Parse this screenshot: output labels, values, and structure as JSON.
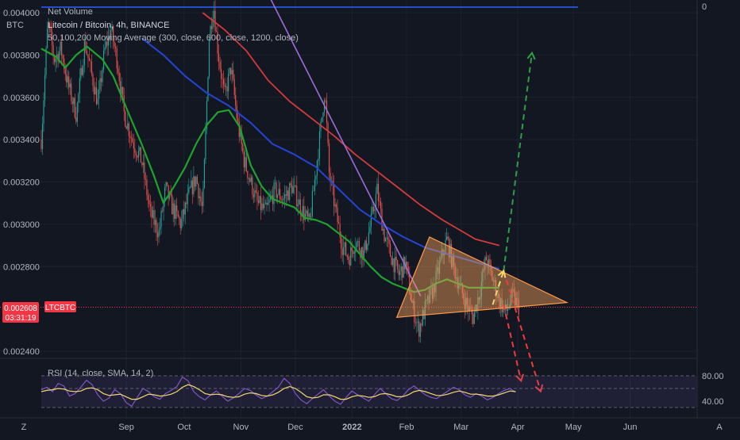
{
  "chart_data": {
    "type": "candlestick",
    "symbol": "LTCBTC",
    "title": "Litecoin / Bitcoin, 4h, BINANCE",
    "base_currency": "BTC",
    "indicator_top": "Net Volume",
    "indicator_top_value": "0",
    "ma_legend": "50,100,200 Moving Average (300, close, 600, close, 1200, close)",
    "rsi_legend": "RSI (14, close, SMA, 14, 2)",
    "current_price": "0.002608",
    "countdown": "03:31:19",
    "price_ticks": [
      "0.004000",
      "0.003800",
      "0.003600",
      "0.003400",
      "0.003200",
      "0.003000",
      "0.002800",
      "0.002400"
    ],
    "rsi_ticks": [
      "80.00",
      "40.00"
    ],
    "time_ticks": [
      "Sep",
      "Oct",
      "Nov",
      "Dec",
      "2022",
      "Feb",
      "Mar",
      "Apr",
      "May",
      "Jun"
    ],
    "scale_buttons": [
      "Z",
      "A"
    ],
    "price_path": [
      [
        0,
        0.0034
      ],
      [
        6,
        0.00395
      ],
      [
        12,
        0.00378
      ],
      [
        18,
        0.00383
      ],
      [
        24,
        0.00367
      ],
      [
        32,
        0.00352
      ],
      [
        40,
        0.00386
      ],
      [
        46,
        0.00371
      ],
      [
        52,
        0.00357
      ],
      [
        58,
        0.00382
      ],
      [
        64,
        0.00392
      ],
      [
        70,
        0.00376
      ],
      [
        76,
        0.00352
      ],
      [
        84,
        0.00339
      ],
      [
        92,
        0.0033
      ],
      [
        100,
        0.00305
      ],
      [
        108,
        0.00296
      ],
      [
        114,
        0.00317
      ],
      [
        120,
        0.00308
      ],
      [
        128,
        0.003
      ],
      [
        136,
        0.00315
      ],
      [
        142,
        0.00322
      ],
      [
        148,
        0.00306
      ],
      [
        154,
        0.00388
      ],
      [
        158,
        0.00404
      ],
      [
        162,
        0.00382
      ],
      [
        168,
        0.0036
      ],
      [
        174,
        0.00374
      ],
      [
        180,
        0.00348
      ],
      [
        186,
        0.0033
      ],
      [
        192,
        0.0032
      ],
      [
        198,
        0.0031
      ],
      [
        206,
        0.00306
      ],
      [
        214,
        0.00316
      ],
      [
        222,
        0.00312
      ],
      [
        230,
        0.00318
      ],
      [
        238,
        0.00308
      ],
      [
        246,
        0.003
      ],
      [
        252,
        0.00326
      ],
      [
        256,
        0.00344
      ],
      [
        260,
        0.00364
      ],
      [
        264,
        0.00324
      ],
      [
        270,
        0.00306
      ],
      [
        276,
        0.0029
      ],
      [
        282,
        0.00284
      ],
      [
        288,
        0.00292
      ],
      [
        296,
        0.00286
      ],
      [
        302,
        0.003
      ],
      [
        308,
        0.00316
      ],
      [
        314,
        0.00296
      ],
      [
        320,
        0.00286
      ],
      [
        328,
        0.00276
      ],
      [
        334,
        0.00282
      ],
      [
        340,
        0.00262
      ],
      [
        346,
        0.0025
      ],
      [
        352,
        0.0026
      ],
      [
        360,
        0.0027
      ],
      [
        366,
        0.00282
      ],
      [
        372,
        0.00293
      ],
      [
        378,
        0.0028
      ],
      [
        384,
        0.0027
      ],
      [
        390,
        0.00262
      ],
      [
        396,
        0.00256
      ],
      [
        402,
        0.00268
      ],
      [
        408,
        0.00284
      ],
      [
        414,
        0.00274
      ],
      [
        420,
        0.00264
      ],
      [
        426,
        0.00258
      ],
      [
        432,
        0.00266
      ],
      [
        438,
        0.00261
      ]
    ],
    "ma_300": [
      [
        0,
        0.00383
      ],
      [
        14,
        0.00379
      ],
      [
        22,
        0.00374
      ],
      [
        32,
        0.0038
      ],
      [
        42,
        0.00384
      ],
      [
        56,
        0.00378
      ],
      [
        66,
        0.0037
      ],
      [
        78,
        0.00355
      ],
      [
        92,
        0.00338
      ],
      [
        104,
        0.00322
      ],
      [
        112,
        0.0031
      ],
      [
        122,
        0.00318
      ],
      [
        132,
        0.00327
      ],
      [
        142,
        0.00338
      ],
      [
        152,
        0.00347
      ],
      [
        162,
        0.00353
      ],
      [
        172,
        0.00354
      ],
      [
        182,
        0.00346
      ],
      [
        192,
        0.00328
      ],
      [
        202,
        0.00318
      ],
      [
        212,
        0.00312
      ],
      [
        222,
        0.0031
      ],
      [
        232,
        0.00308
      ],
      [
        242,
        0.00303
      ],
      [
        252,
        0.00302
      ],
      [
        262,
        0.003
      ],
      [
        272,
        0.00296
      ],
      [
        282,
        0.00292
      ],
      [
        292,
        0.00286
      ],
      [
        302,
        0.0028
      ],
      [
        312,
        0.00275
      ],
      [
        322,
        0.00272
      ],
      [
        332,
        0.0027
      ],
      [
        342,
        0.00268
      ],
      [
        352,
        0.00269
      ],
      [
        362,
        0.00272
      ],
      [
        372,
        0.00274
      ],
      [
        382,
        0.00272
      ],
      [
        392,
        0.0027
      ],
      [
        402,
        0.0027
      ],
      [
        412,
        0.0027
      ],
      [
        420,
        0.0027
      ]
    ],
    "ma_600": [
      [
        92,
        0.00388
      ],
      [
        112,
        0.0038
      ],
      [
        132,
        0.0037
      ],
      [
        152,
        0.00362
      ],
      [
        172,
        0.00356
      ],
      [
        192,
        0.00348
      ],
      [
        212,
        0.00338
      ],
      [
        232,
        0.00333
      ],
      [
        252,
        0.00327
      ],
      [
        272,
        0.00317
      ],
      [
        292,
        0.00307
      ],
      [
        312,
        0.003
      ],
      [
        332,
        0.00294
      ],
      [
        352,
        0.00289
      ],
      [
        372,
        0.00286
      ],
      [
        392,
        0.00283
      ],
      [
        412,
        0.0028
      ],
      [
        420,
        0.00279
      ]
    ],
    "ma_1200": [
      [
        148,
        0.004
      ],
      [
        168,
        0.00392
      ],
      [
        188,
        0.00382
      ],
      [
        208,
        0.00368
      ],
      [
        228,
        0.00358
      ],
      [
        248,
        0.0035
      ],
      [
        268,
        0.00342
      ],
      [
        288,
        0.00333
      ],
      [
        308,
        0.00325
      ],
      [
        328,
        0.00317
      ],
      [
        348,
        0.00309
      ],
      [
        368,
        0.00302
      ],
      [
        388,
        0.00296
      ],
      [
        398,
        0.00293
      ],
      [
        420,
        0.0029
      ]
    ],
    "trendline": [
      [
        202,
        0.00415
      ],
      [
        348,
        0.00266
      ]
    ],
    "triangle": [
      [
        326,
        0.00256
      ],
      [
        356,
        0.00294
      ],
      [
        482,
        0.00263
      ]
    ],
    "triangle_lower": [
      [
        326,
        0.00256
      ],
      [
        482,
        0.00263
      ]
    ],
    "arrow_up": [
      [
        424,
        0.00278
      ],
      [
        450,
        0.00381
      ]
    ],
    "arrow_down1": [
      [
        424,
        0.00262
      ],
      [
        440,
        0.00226
      ]
    ],
    "arrow_down2": [
      [
        424,
        0.00278
      ],
      [
        458,
        0.00221
      ]
    ],
    "arrow_small": [
      [
        414,
        0.00262
      ],
      [
        424,
        0.00278
      ]
    ],
    "rsi": [
      58,
      62,
      55,
      68,
      64,
      48,
      52,
      62,
      73,
      66,
      50,
      40,
      45,
      58,
      52,
      38,
      32,
      46,
      60,
      55,
      47,
      43,
      52,
      57,
      63,
      78,
      72,
      55,
      47,
      42,
      50,
      56,
      48,
      40,
      45,
      52,
      60,
      57,
      50,
      44,
      48,
      55,
      62,
      76,
      68,
      52,
      42,
      36,
      44,
      51,
      58,
      48,
      40,
      35,
      46,
      56,
      50,
      45,
      40,
      50,
      60,
      52,
      44,
      41,
      48,
      58,
      64,
      57,
      50,
      46,
      44,
      50,
      56,
      62,
      58,
      50,
      46,
      52,
      48,
      42,
      46,
      52,
      57,
      60,
      54
    ],
    "rsi_ma": [
      55,
      57,
      58,
      60,
      59,
      56,
      55,
      56,
      60,
      61,
      58,
      52,
      49,
      50,
      51,
      47,
      43,
      43,
      47,
      51,
      50,
      48,
      49,
      51,
      55,
      62,
      66,
      63,
      58,
      52,
      50,
      51,
      50,
      47,
      46,
      47,
      51,
      53,
      52,
      49,
      48,
      50,
      54,
      60,
      63,
      60,
      54,
      47,
      45,
      46,
      50,
      50,
      47,
      43,
      43,
      47,
      49,
      48,
      46,
      47,
      51,
      52,
      50,
      47,
      47,
      50,
      55,
      57,
      55,
      52,
      49,
      49,
      51,
      54,
      56,
      54,
      51,
      51,
      50,
      48,
      48,
      50,
      53,
      56,
      55
    ],
    "colors": {
      "background": "#131722",
      "up": "#26a69a",
      "down": "#ef5350",
      "ma_300": "#1fa22e",
      "ma_600": "#2444d6",
      "ma_1200": "#d43b3b",
      "trendline": "#9b6dd7",
      "triangle_fill": "#f7a55b",
      "triangle_edge": "#ff9a4a",
      "arrow_up": "#2e9e47",
      "arrow_down": "#f23a3a",
      "arrow_small": "#f5d76e",
      "rsi_line": "#7e57c2",
      "rsi_ma": "#f5d76e",
      "price_label": "#f23645",
      "net_volume": "#2962ff"
    }
  }
}
